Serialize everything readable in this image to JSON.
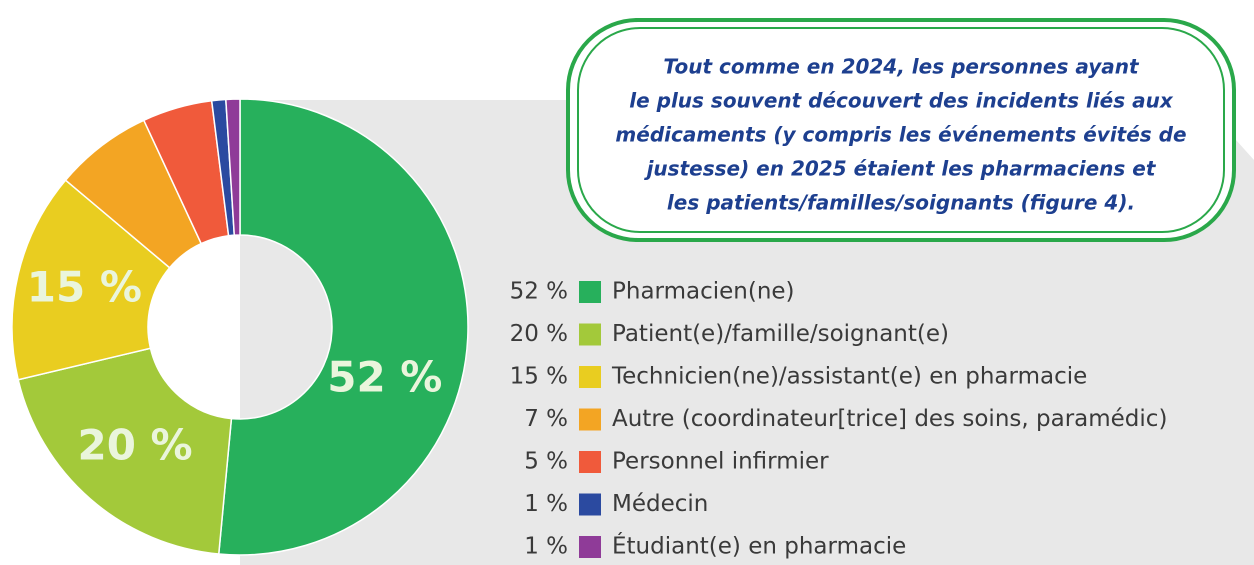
{
  "chart_data": {
    "type": "donut",
    "annotation": [
      "Tout comme en 2024, les personnes ayant",
      "le plus souvent découvert des incidents liés aux",
      "médicaments (y compris les événements évités de",
      "justesse) en 2025 étaient les pharmaciens et",
      "les patients/familles/soignants (figure 4)."
    ],
    "categories": [
      "Pharmacien(ne)",
      "Patient(e)/famille/soignant(e)",
      "Technicien(ne)/assistant(e) en pharmacie",
      "Autre (coordinateur[trice] des soins, paramédic)",
      "Personnel infirmier",
      "Médecin",
      "Étudiant(e) en pharmacie"
    ],
    "values": [
      52,
      20,
      15,
      7,
      5,
      1,
      1
    ],
    "value_labels": [
      "52 %",
      "20 %",
      "15 %",
      "7 %",
      "5 %",
      "1 %",
      "1 %"
    ],
    "colors": [
      "#27b05c",
      "#a3c93a",
      "#e9cd20",
      "#f3a523",
      "#f05a3b",
      "#2b4aa0",
      "#8f3b98"
    ]
  }
}
